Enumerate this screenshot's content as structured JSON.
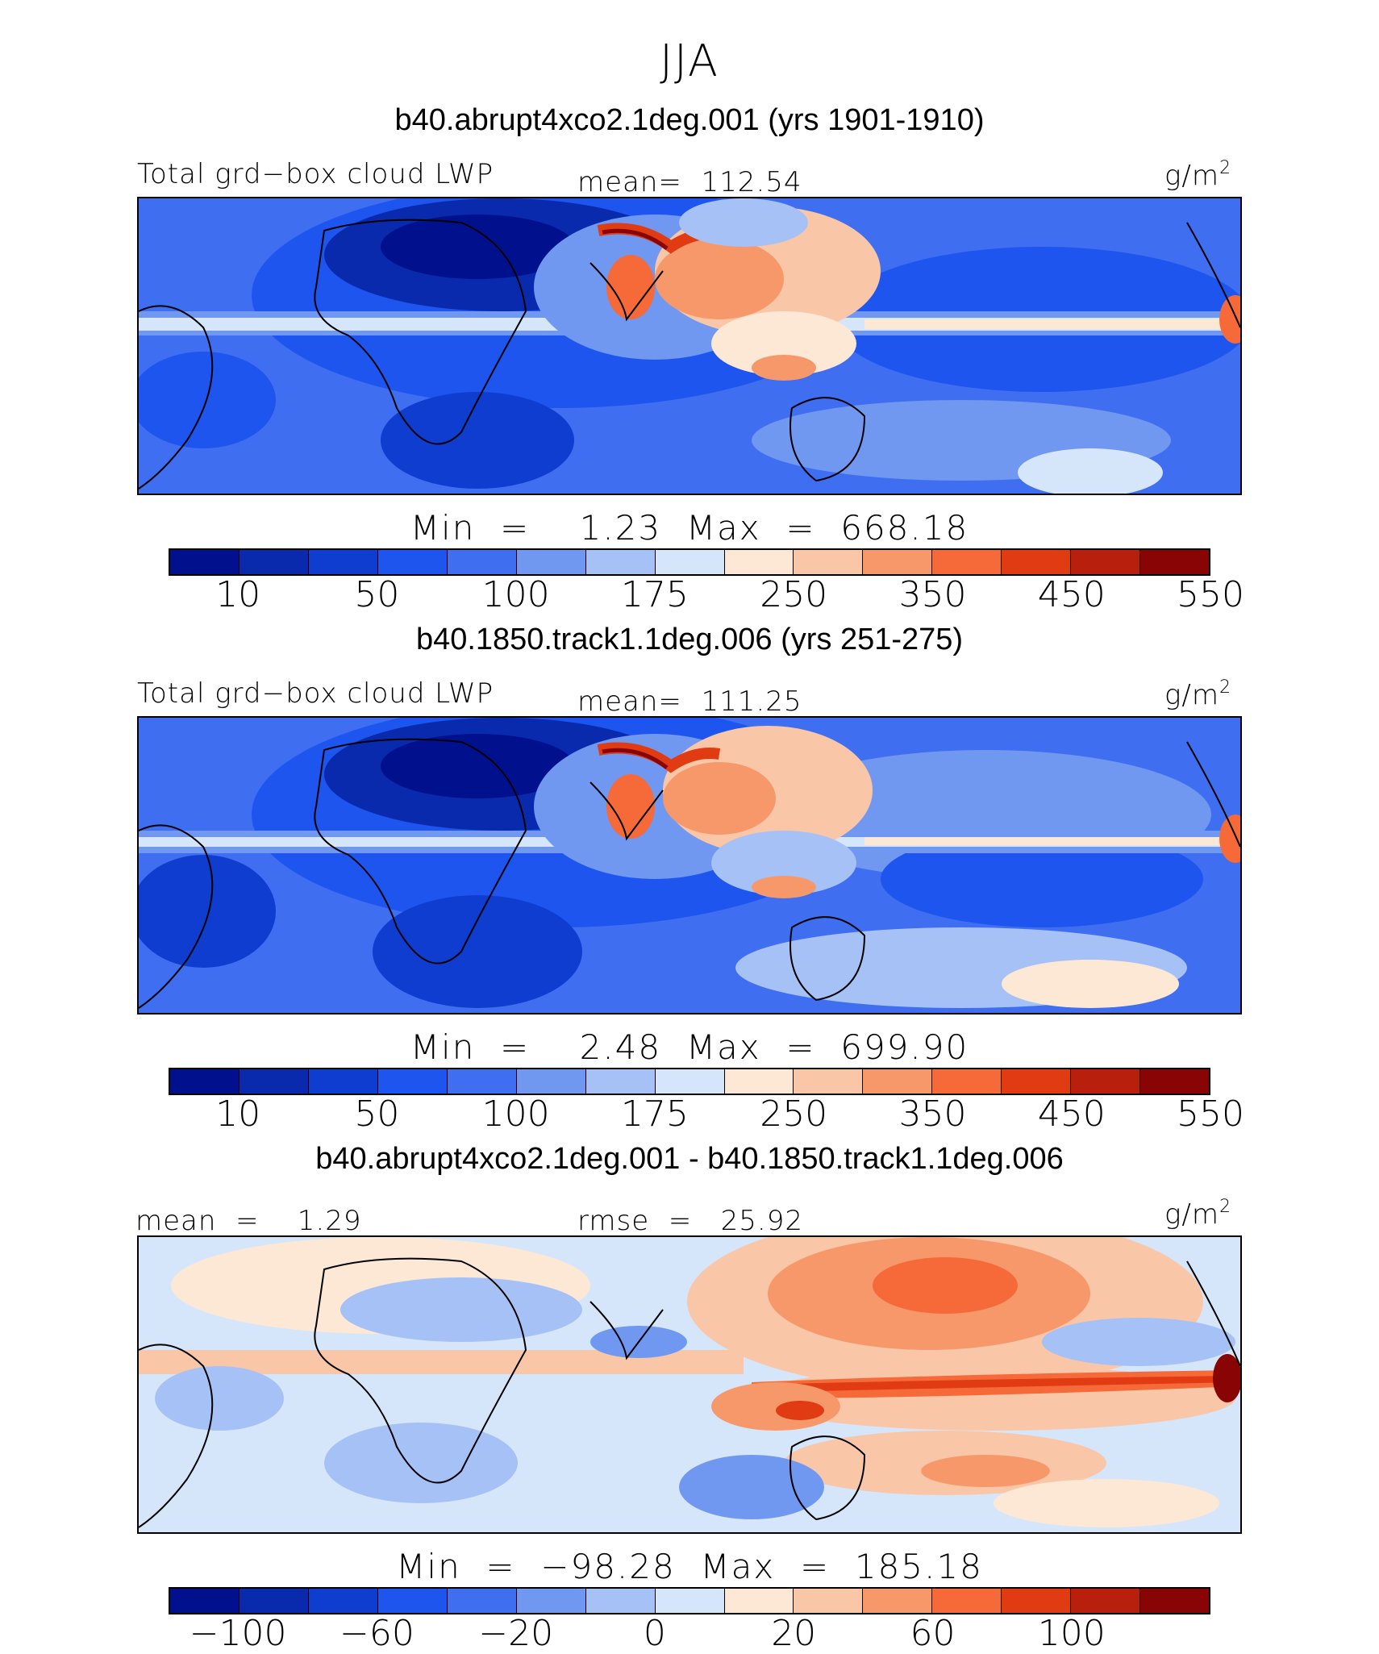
{
  "title": "JJA",
  "units_text": "g/m",
  "units_sup": "2",
  "panels": [
    {
      "case_title": "b40.abrupt4xco2.1deg.001 (yrs 1901-1910)",
      "left_label": "Total grd−box cloud LWP",
      "stat_label": "mean=  112.54",
      "minmax": "Min  =    1.23  Max  =  668.18",
      "kind": "abs"
    },
    {
      "case_title": "b40.1850.track1.1deg.006 (yrs 251-275)",
      "left_label": "Total grd−box cloud LWP",
      "stat_label": "mean=  111.25",
      "minmax": "Min  =    2.48  Max  =  699.90",
      "kind": "abs"
    },
    {
      "case_title": "b40.abrupt4xco2.1deg.001 - b40.1850.track1.1deg.006",
      "left_label": "mean  =    1.29",
      "stat_label": "rmse  =   25.92",
      "minmax": "Min  =  −98.28  Max  =  185.18",
      "kind": "diff"
    }
  ],
  "abs_colorbar": {
    "colors": [
      "#01108c",
      "#0a2aae",
      "#0f3dd0",
      "#1e55ee",
      "#3f6ef0",
      "#7098f0",
      "#a6c1f6",
      "#d6e6fa",
      "#fde8d6",
      "#f9c6a8",
      "#f7986a",
      "#f56a38",
      "#e03b12",
      "#b81f0c",
      "#880405"
    ],
    "ticks": [
      "10",
      "50",
      "100",
      "175",
      "250",
      "350",
      "450",
      "550"
    ]
  },
  "diff_colorbar": {
    "colors": [
      "#01108c",
      "#0a2aae",
      "#0f3dd0",
      "#1e55ee",
      "#3f6ef0",
      "#7098f0",
      "#a6c1f6",
      "#d6e6fa",
      "#fde8d6",
      "#f9c6a8",
      "#f7986a",
      "#f56a38",
      "#e03b12",
      "#b81f0c",
      "#880405"
    ],
    "ticks": [
      "−100",
      "−60",
      "−20",
      "0",
      "20",
      "60",
      "100"
    ]
  }
}
